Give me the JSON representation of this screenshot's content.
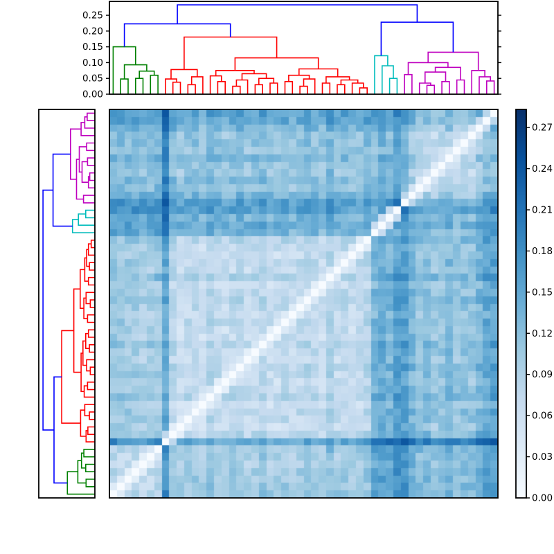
{
  "figure": {
    "background": "#ffffff",
    "axes_border_color": "#000000"
  },
  "chart_data": {
    "type": "heatmap",
    "title": "",
    "xlabel": "",
    "ylabel": "",
    "description": "clustered distance-matrix heatmap with top and left dendrograms and a Blues colorbar",
    "n_leaves": 52,
    "vmin": 0,
    "vmax": 0.2832,
    "grid": false,
    "colormap": {
      "name": "Blues",
      "stops": [
        [
          0.0,
          "#f7fbff"
        ],
        [
          0.125,
          "#deebf7"
        ],
        [
          0.25,
          "#c6dbef"
        ],
        [
          0.375,
          "#9ecae1"
        ],
        [
          0.5,
          "#6baed6"
        ],
        [
          0.625,
          "#4292c6"
        ],
        [
          0.75,
          "#2171b5"
        ],
        [
          0.875,
          "#08519c"
        ],
        [
          1.0,
          "#08306b"
        ]
      ]
    },
    "link_color": "#0000ff",
    "clusters": [
      {
        "name": "green",
        "color": "#008000",
        "range": [
          0,
          6
        ]
      },
      {
        "name": "red",
        "color": "#ff0000",
        "range": [
          7,
          34
        ]
      },
      {
        "name": "cyan",
        "color": "#00bcbc",
        "range": [
          35,
          38
        ]
      },
      {
        "name": "magenta",
        "color": "#bf00bf",
        "range": [
          39,
          51
        ]
      }
    ],
    "cluster_base": [
      [
        0.05,
        0.078,
        0.105,
        0.095
      ],
      [
        0.078,
        0.055,
        0.095,
        0.09
      ],
      [
        0.105,
        0.095,
        0.06,
        0.08
      ],
      [
        0.095,
        0.09,
        0.08,
        0.055
      ]
    ],
    "leaf_offsets": [
      0.022,
      0.015,
      0.013,
      0.015,
      0.008,
      0.012,
      0.018,
      0.085,
      0.018,
      0.002,
      0.008,
      0.012,
      0.0,
      0.022,
      0.01,
      0.003,
      0.008,
      0.014,
      0.002,
      0.01,
      0.02,
      0.005,
      0.003,
      0.012,
      0.002,
      0.008,
      0.018,
      0.008,
      0.002,
      0.028,
      0.006,
      0.012,
      0.004,
      0.008,
      0.02,
      0.03,
      0.04,
      0.03,
      0.055,
      0.06,
      0.032,
      0.012,
      0.02,
      0.006,
      0.012,
      0.026,
      0.008,
      0.016,
      0.012,
      0.032,
      0.048,
      0.055
    ],
    "noise_amplitude": 0.04,
    "sibling_factor": 0.5,
    "row_order": "reversed-columns (white diagonal runs bottom-left to top-right)",
    "top_dendrogram": {
      "ymax": 0.294,
      "tick_values": [
        0.0,
        0.05,
        0.1,
        0.15,
        0.2,
        0.25
      ],
      "tick_labels": [
        "0.00",
        "0.05",
        "0.10",
        "0.15",
        "0.20",
        "0.25"
      ]
    },
    "left_dendrogram": {
      "xmax": 0.306,
      "tick_labels": []
    },
    "colorbar": {
      "tick_values": [
        0.0,
        0.03,
        0.06,
        0.09,
        0.12,
        0.15,
        0.18,
        0.21,
        0.24,
        0.27
      ],
      "tick_labels": [
        "0.00",
        "0.03",
        "0.06",
        "0.09",
        "0.12",
        "0.15",
        "0.18",
        "0.21",
        "0.24",
        "0.27"
      ]
    },
    "tree": {
      "h": 0.283,
      "c": [
        {
          "h": 0.223,
          "c": [
            {
              "h": 0.15,
              "c": [
                0,
                {
                  "h": 0.093,
                  "c": [
                    {
                      "h": 0.048,
                      "c": [
                        1,
                        2
                      ]
                    },
                    {
                      "h": 0.073,
                      "c": [
                        {
                          "h": 0.05,
                          "c": [
                            3,
                            4
                          ]
                        },
                        {
                          "h": 0.06,
                          "c": [
                            5,
                            6
                          ]
                        }
                      ]
                    }
                  ]
                }
              ]
            },
            {
              "h": 0.181,
              "c": [
                {
                  "h": 0.078,
                  "c": [
                    {
                      "h": 0.048,
                      "c": [
                        7,
                        {
                          "h": 0.038,
                          "c": [
                            8,
                            9
                          ]
                        }
                      ]
                    },
                    {
                      "h": 0.055,
                      "c": [
                        {
                          "h": 0.03,
                          "c": [
                            10,
                            11
                          ]
                        },
                        12
                      ]
                    }
                  ]
                },
                {
                  "h": 0.115,
                  "c": [
                    {
                      "h": 0.075,
                      "c": [
                        {
                          "h": 0.058,
                          "c": [
                            13,
                            {
                              "h": 0.04,
                              "c": [
                                14,
                                15
                              ]
                            }
                          ]
                        },
                        {
                          "h": 0.065,
                          "c": [
                            {
                              "h": 0.045,
                              "c": [
                                {
                                  "h": 0.025,
                                  "c": [
                                    16,
                                    17
                                  ]
                                },
                                18
                              ]
                            },
                            {
                              "h": 0.05,
                              "c": [
                                {
                                  "h": 0.03,
                                  "c": [
                                    19,
                                    20
                                  ]
                                },
                                {
                                  "h": 0.035,
                                  "c": [
                                    21,
                                    22
                                  ]
                                }
                              ]
                            }
                          ]
                        }
                      ]
                    },
                    {
                      "h": 0.08,
                      "c": [
                        {
                          "h": 0.06,
                          "c": [
                            {
                              "h": 0.04,
                              "c": [
                                23,
                                24
                              ]
                            },
                            {
                              "h": 0.048,
                              "c": [
                                {
                                  "h": 0.025,
                                  "c": [
                                    25,
                                    26
                                  ]
                                },
                                27
                              ]
                            }
                          ]
                        },
                        {
                          "h": 0.055,
                          "c": [
                            {
                              "h": 0.035,
                              "c": [
                                28,
                                29
                              ]
                            },
                            {
                              "h": 0.045,
                              "c": [
                                {
                                  "h": 0.03,
                                  "c": [
                                    30,
                                    31
                                  ]
                                },
                                {
                                  "h": 0.035,
                                  "c": [
                                    32,
                                    {
                                      "h": 0.02,
                                      "c": [
                                        33,
                                        34
                                      ]
                                    }
                                  ]
                                }
                              ]
                            }
                          ]
                        }
                      ]
                    }
                  ]
                }
              ]
            }
          ]
        },
        {
          "h": 0.228,
          "c": [
            {
              "h": 0.122,
              "c": [
                35,
                {
                  "h": 0.09,
                  "c": [
                    36,
                    {
                      "h": 0.05,
                      "c": [
                        37,
                        38
                      ]
                    }
                  ]
                }
              ]
            },
            {
              "h": 0.133,
              "c": [
                {
                  "h": 0.1,
                  "c": [
                    {
                      "h": 0.062,
                      "c": [
                        39,
                        40
                      ]
                    },
                    {
                      "h": 0.085,
                      "c": [
                        {
                          "h": 0.07,
                          "c": [
                            {
                              "h": 0.035,
                              "c": [
                                41,
                                {
                                  "h": 0.028,
                                  "c": [
                                    42,
                                    43
                                  ]
                                }
                              ]
                            },
                            {
                              "h": 0.04,
                              "c": [
                                44,
                                45
                              ]
                            }
                          ]
                        },
                        {
                          "h": 0.045,
                          "c": [
                            46,
                            47
                          ]
                        }
                      ]
                    }
                  ]
                },
                {
                  "h": 0.075,
                  "c": [
                    48,
                    {
                      "h": 0.055,
                      "c": [
                        49,
                        {
                          "h": 0.042,
                          "c": [
                            50,
                            51
                          ]
                        }
                      ]
                    }
                  ]
                }
              ]
            }
          ]
        }
      ]
    }
  }
}
